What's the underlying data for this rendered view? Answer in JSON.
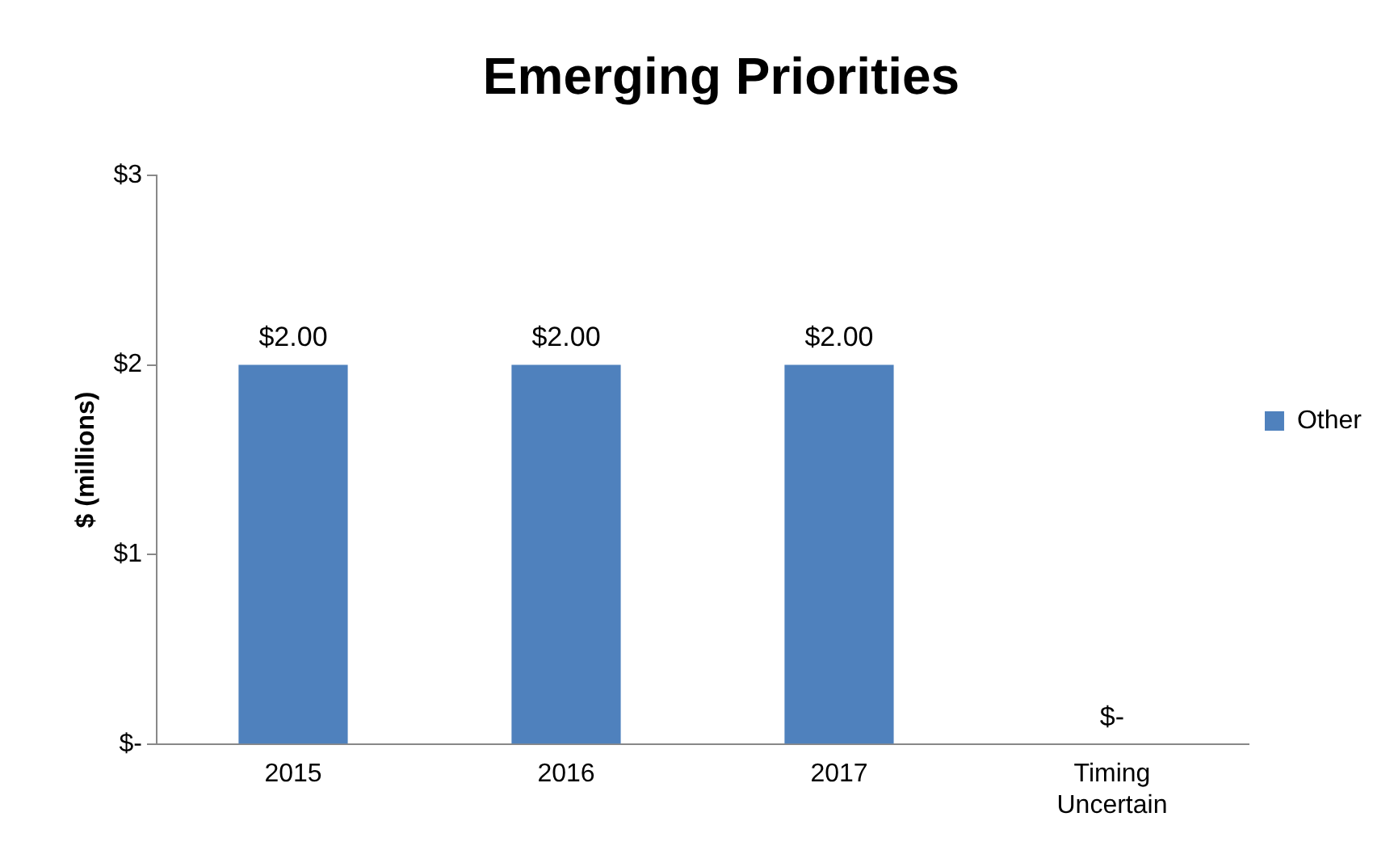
{
  "chart_data": {
    "type": "bar",
    "title": "Emerging Priorities",
    "ylabel": "$ (millions)",
    "categories": [
      "2015",
      "2016",
      "2017",
      "Timing Uncertain"
    ],
    "series": [
      {
        "name": "Other",
        "color": "#4f81bd",
        "values": [
          2,
          2,
          2,
          0
        ],
        "value_labels": [
          "$2.00",
          "$2.00",
          "$2.00",
          "$-"
        ]
      }
    ],
    "ylim": [
      0,
      3
    ],
    "yticks": [
      {
        "value": 0,
        "label": "$-"
      },
      {
        "value": 1,
        "label": "$1"
      },
      {
        "value": 2,
        "label": "$2"
      },
      {
        "value": 3,
        "label": "$3"
      }
    ],
    "grid": false,
    "legend": "right"
  }
}
